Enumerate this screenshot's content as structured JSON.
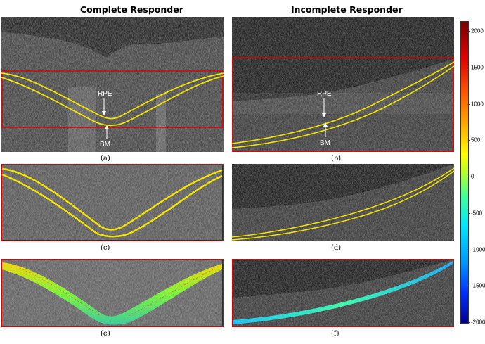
{
  "titles": {
    "left": "Complete Responder",
    "right": "Incomplete Responder"
  },
  "captions": [
    "(a)",
    "(b)",
    "(c)",
    "(d)",
    "(e)",
    "(f)"
  ],
  "labels": {
    "rpe": "RPE",
    "bm": "BM"
  },
  "colorbar": {
    "ticks": [
      "2000",
      "1500",
      "1000",
      "500",
      "0",
      "-500",
      "-1000",
      "-1500",
      "-2000"
    ],
    "max": 2000,
    "min": -2000
  },
  "colors": {
    "boundary": "#f4e400",
    "roi_box": "#e00000",
    "background": "#ffffff"
  }
}
